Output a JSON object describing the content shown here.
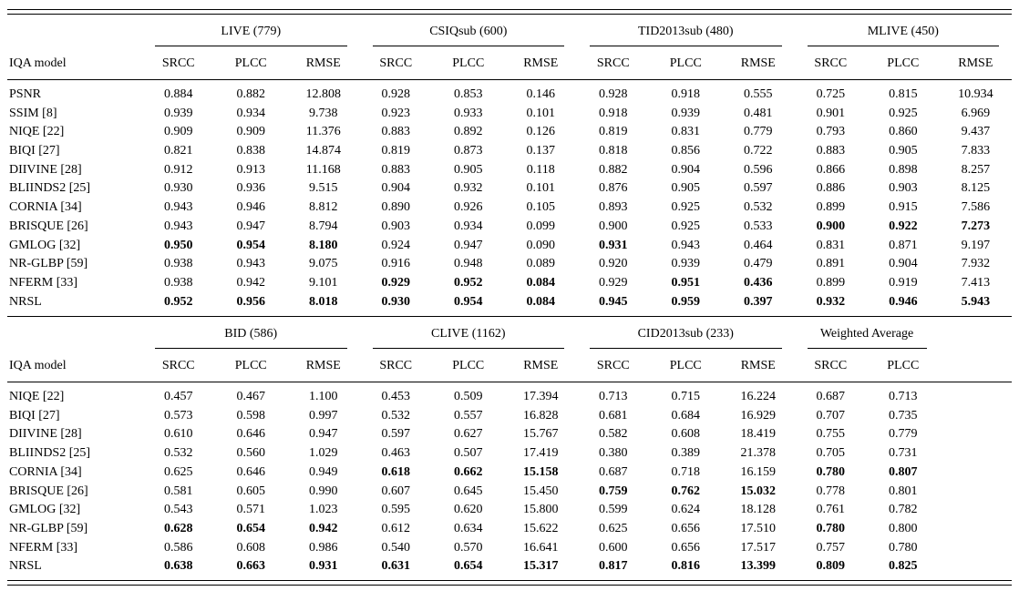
{
  "tables": [
    {
      "row_header": "IQA model",
      "groups": [
        {
          "label": "LIVE (779)",
          "cols": [
            "SRCC",
            "PLCC",
            "RMSE"
          ]
        },
        {
          "label": "CSIQsub (600)",
          "cols": [
            "SRCC",
            "PLCC",
            "RMSE"
          ]
        },
        {
          "label": "TID2013sub (480)",
          "cols": [
            "SRCC",
            "PLCC",
            "RMSE"
          ]
        },
        {
          "label": "MLIVE (450)",
          "cols": [
            "SRCC",
            "PLCC",
            "RMSE"
          ]
        }
      ],
      "rows": [
        {
          "model": "PSNR",
          "values": [
            "0.884",
            "0.882",
            "12.808",
            "0.928",
            "0.853",
            "0.146",
            "0.928",
            "0.918",
            "0.555",
            "0.725",
            "0.815",
            "10.934"
          ],
          "bold": []
        },
        {
          "model": "SSIM [8]",
          "values": [
            "0.939",
            "0.934",
            "9.738",
            "0.923",
            "0.933",
            "0.101",
            "0.918",
            "0.939",
            "0.481",
            "0.901",
            "0.925",
            "6.969"
          ],
          "bold": []
        },
        {
          "model": "NIQE [22]",
          "values": [
            "0.909",
            "0.909",
            "11.376",
            "0.883",
            "0.892",
            "0.126",
            "0.819",
            "0.831",
            "0.779",
            "0.793",
            "0.860",
            "9.437"
          ],
          "bold": []
        },
        {
          "model": "BIQI [27]",
          "values": [
            "0.821",
            "0.838",
            "14.874",
            "0.819",
            "0.873",
            "0.137",
            "0.818",
            "0.856",
            "0.722",
            "0.883",
            "0.905",
            "7.833"
          ],
          "bold": []
        },
        {
          "model": "DIIVINE [28]",
          "values": [
            "0.912",
            "0.913",
            "11.168",
            "0.883",
            "0.905",
            "0.118",
            "0.882",
            "0.904",
            "0.596",
            "0.866",
            "0.898",
            "8.257"
          ],
          "bold": []
        },
        {
          "model": "BLIINDS2 [25]",
          "values": [
            "0.930",
            "0.936",
            "9.515",
            "0.904",
            "0.932",
            "0.101",
            "0.876",
            "0.905",
            "0.597",
            "0.886",
            "0.903",
            "8.125"
          ],
          "bold": []
        },
        {
          "model": "CORNIA [34]",
          "values": [
            "0.943",
            "0.946",
            "8.812",
            "0.890",
            "0.926",
            "0.105",
            "0.893",
            "0.925",
            "0.532",
            "0.899",
            "0.915",
            "7.586"
          ],
          "bold": []
        },
        {
          "model": "BRISQUE [26]",
          "values": [
            "0.943",
            "0.947",
            "8.794",
            "0.903",
            "0.934",
            "0.099",
            "0.900",
            "0.925",
            "0.533",
            "0.900",
            "0.922",
            "7.273"
          ],
          "bold": [
            9,
            10,
            11
          ]
        },
        {
          "model": "GMLOG [32]",
          "values": [
            "0.950",
            "0.954",
            "8.180",
            "0.924",
            "0.947",
            "0.090",
            "0.931",
            "0.943",
            "0.464",
            "0.831",
            "0.871",
            "9.197"
          ],
          "bold": [
            0,
            1,
            2,
            6
          ]
        },
        {
          "model": "NR-GLBP [59]",
          "values": [
            "0.938",
            "0.943",
            "9.075",
            "0.916",
            "0.948",
            "0.089",
            "0.920",
            "0.939",
            "0.479",
            "0.891",
            "0.904",
            "7.932"
          ],
          "bold": []
        },
        {
          "model": "NFERM [33]",
          "values": [
            "0.938",
            "0.942",
            "9.101",
            "0.929",
            "0.952",
            "0.084",
            "0.929",
            "0.951",
            "0.436",
            "0.899",
            "0.919",
            "7.413"
          ],
          "bold": [
            3,
            4,
            5,
            7,
            8
          ]
        },
        {
          "model": "NRSL",
          "values": [
            "0.952",
            "0.956",
            "8.018",
            "0.930",
            "0.954",
            "0.084",
            "0.945",
            "0.959",
            "0.397",
            "0.932",
            "0.946",
            "5.943"
          ],
          "bold": [
            0,
            1,
            2,
            3,
            4,
            5,
            6,
            7,
            8,
            9,
            10,
            11
          ]
        }
      ]
    },
    {
      "row_header": "IQA model",
      "groups": [
        {
          "label": "BID (586)",
          "cols": [
            "SRCC",
            "PLCC",
            "RMSE"
          ]
        },
        {
          "label": "CLIVE (1162)",
          "cols": [
            "SRCC",
            "PLCC",
            "RMSE"
          ]
        },
        {
          "label": "CID2013sub (233)",
          "cols": [
            "SRCC",
            "PLCC",
            "RMSE"
          ]
        },
        {
          "label": "Weighted Average",
          "cols": [
            "SRCC",
            "PLCC"
          ]
        }
      ],
      "rows": [
        {
          "model": "NIQE [22]",
          "values": [
            "0.457",
            "0.467",
            "1.100",
            "0.453",
            "0.509",
            "17.394",
            "0.713",
            "0.715",
            "16.224",
            "0.687",
            "0.713"
          ],
          "bold": []
        },
        {
          "model": "BIQI [27]",
          "values": [
            "0.573",
            "0.598",
            "0.997",
            "0.532",
            "0.557",
            "16.828",
            "0.681",
            "0.684",
            "16.929",
            "0.707",
            "0.735"
          ],
          "bold": []
        },
        {
          "model": "DIIVINE [28]",
          "values": [
            "0.610",
            "0.646",
            "0.947",
            "0.597",
            "0.627",
            "15.767",
            "0.582",
            "0.608",
            "18.419",
            "0.755",
            "0.779"
          ],
          "bold": []
        },
        {
          "model": "BLIINDS2 [25]",
          "values": [
            "0.532",
            "0.560",
            "1.029",
            "0.463",
            "0.507",
            "17.419",
            "0.380",
            "0.389",
            "21.378",
            "0.705",
            "0.731"
          ],
          "bold": []
        },
        {
          "model": "CORNIA [34]",
          "values": [
            "0.625",
            "0.646",
            "0.949",
            "0.618",
            "0.662",
            "15.158",
            "0.687",
            "0.718",
            "16.159",
            "0.780",
            "0.807"
          ],
          "bold": [
            3,
            4,
            5,
            9,
            10
          ]
        },
        {
          "model": "BRISQUE [26]",
          "values": [
            "0.581",
            "0.605",
            "0.990",
            "0.607",
            "0.645",
            "15.450",
            "0.759",
            "0.762",
            "15.032",
            "0.778",
            "0.801"
          ],
          "bold": [
            6,
            7,
            8
          ]
        },
        {
          "model": "GMLOG [32]",
          "values": [
            "0.543",
            "0.571",
            "1.023",
            "0.595",
            "0.620",
            "15.800",
            "0.599",
            "0.624",
            "18.128",
            "0.761",
            "0.782"
          ],
          "bold": []
        },
        {
          "model": "NR-GLBP [59]",
          "values": [
            "0.628",
            "0.654",
            "0.942",
            "0.612",
            "0.634",
            "15.622",
            "0.625",
            "0.656",
            "17.510",
            "0.780",
            "0.800"
          ],
          "bold": [
            0,
            1,
            2,
            9
          ]
        },
        {
          "model": "NFERM [33]",
          "values": [
            "0.586",
            "0.608",
            "0.986",
            "0.540",
            "0.570",
            "16.641",
            "0.600",
            "0.656",
            "17.517",
            "0.757",
            "0.780"
          ],
          "bold": []
        },
        {
          "model": "NRSL",
          "values": [
            "0.638",
            "0.663",
            "0.931",
            "0.631",
            "0.654",
            "15.317",
            "0.817",
            "0.816",
            "13.399",
            "0.809",
            "0.825"
          ],
          "bold": [
            0,
            1,
            2,
            3,
            4,
            5,
            6,
            7,
            8,
            9,
            10
          ]
        }
      ]
    }
  ]
}
